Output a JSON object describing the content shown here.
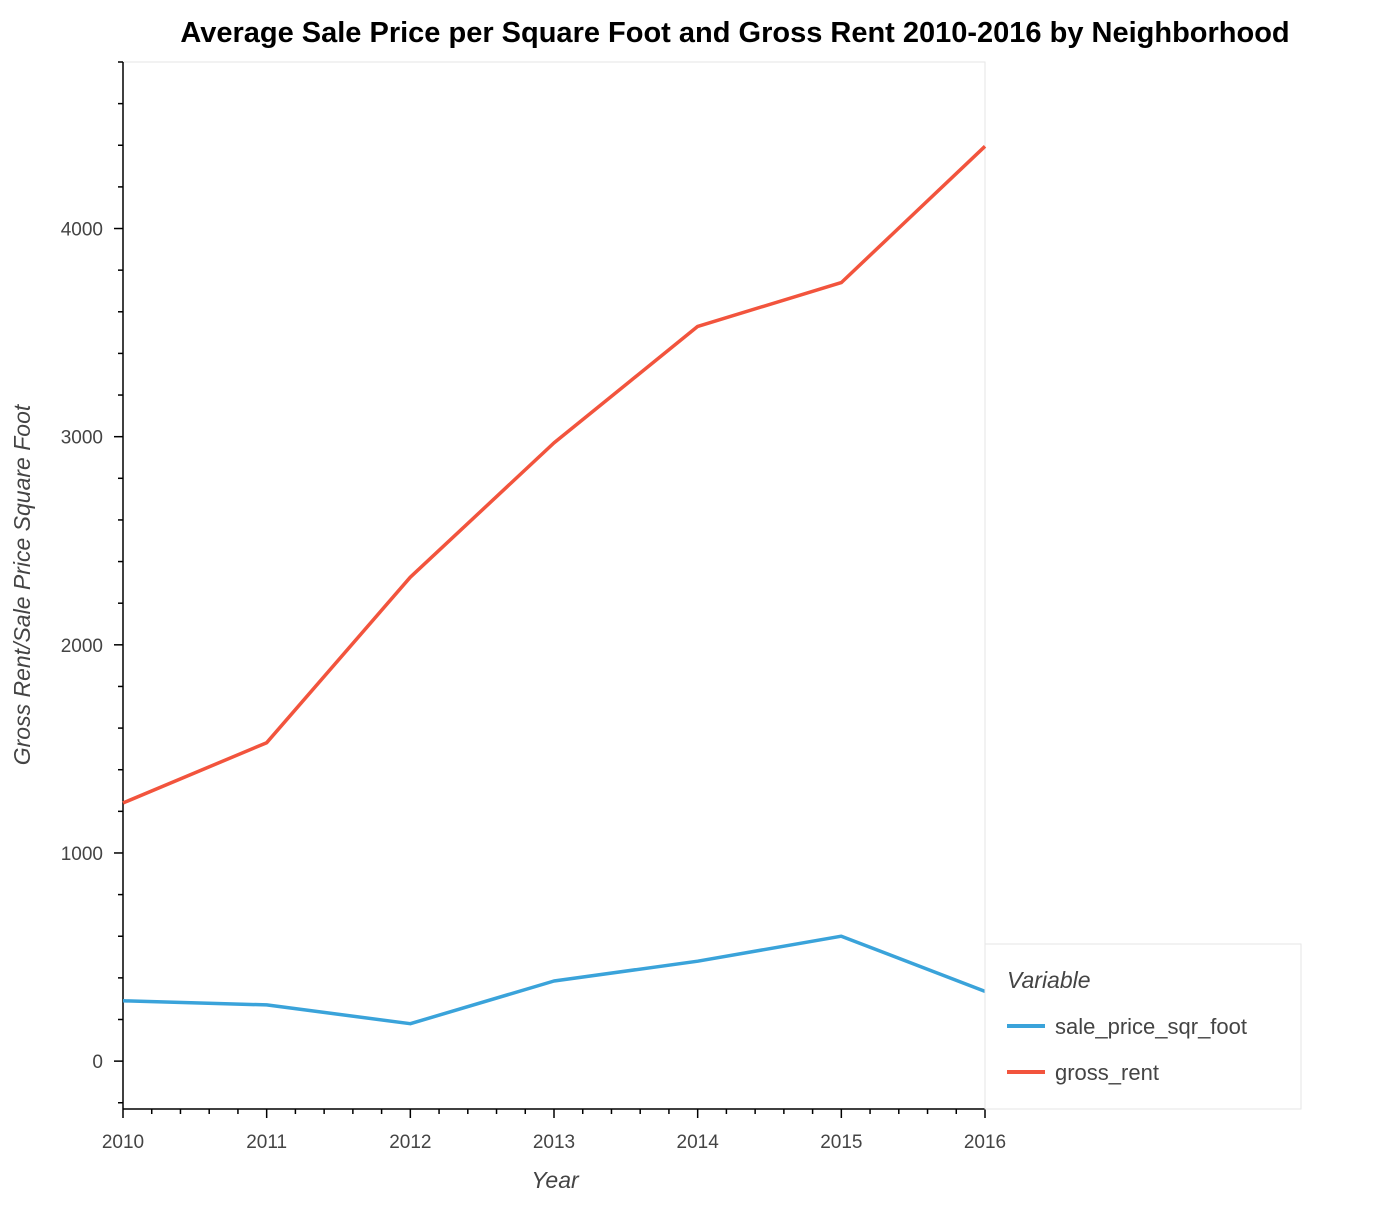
{
  "chart_data": {
    "type": "line",
    "title": "Average Sale Price per Square Foot and Gross Rent 2010-2016 by Neighborhood",
    "xlabel": "Year",
    "ylabel": "Gross Rent/Sale Price Square Foot",
    "x": [
      2010,
      2011,
      2012,
      2013,
      2014,
      2015,
      2016
    ],
    "xlim": [
      2010,
      2016
    ],
    "ylim": [
      -230,
      4800
    ],
    "yticks": [
      0,
      1000,
      2000,
      3000,
      4000
    ],
    "grid": false,
    "legend_title": "Variable",
    "legend_position": "bottom-right outside",
    "series": [
      {
        "name": "sale_price_sqr_foot",
        "color": "#3aa3da",
        "values": [
          290,
          270,
          180,
          385,
          480,
          600,
          335
        ]
      },
      {
        "name": "gross_rent",
        "color": "#f2543d",
        "values": [
          1240,
          1530,
          2325,
          2970,
          3530,
          3740,
          4395
        ]
      }
    ]
  }
}
